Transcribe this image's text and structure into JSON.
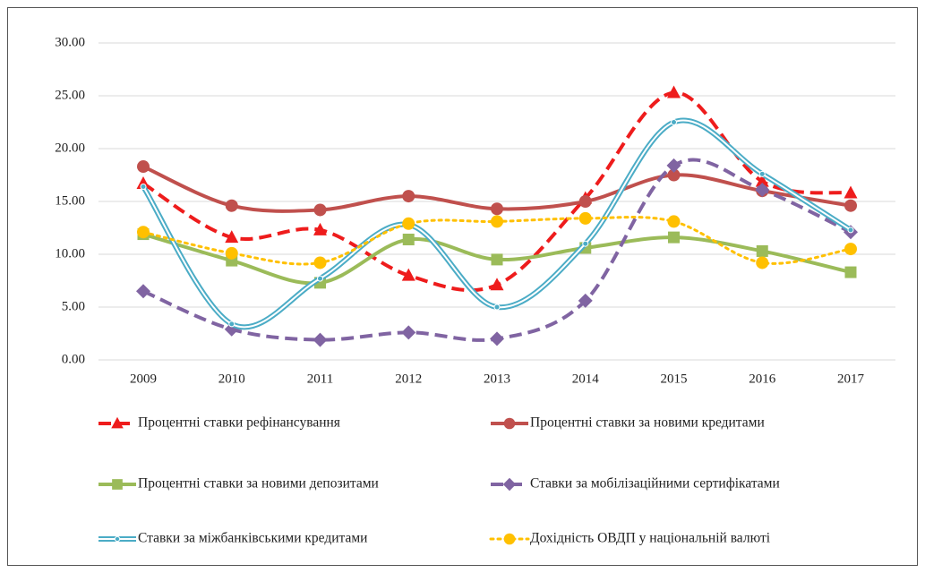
{
  "chart_data": {
    "type": "line",
    "categories": [
      "2009",
      "2010",
      "2011",
      "2012",
      "2013",
      "2014",
      "2015",
      "2016",
      "2017"
    ],
    "ylim": [
      0,
      30
    ],
    "yticks": [
      {
        "value": 0,
        "label": "0.00"
      },
      {
        "value": 5,
        "label": "5.00"
      },
      {
        "value": 10,
        "label": "10.00"
      },
      {
        "value": 15,
        "label": "15.00"
      },
      {
        "value": 20,
        "label": "20.00"
      },
      {
        "value": 25,
        "label": "25.00"
      },
      {
        "value": 30,
        "label": "30.00"
      }
    ],
    "grid": true,
    "legend": "bottom",
    "series": [
      {
        "name": "Процентні ставки рефінансування",
        "color": "#ee1c1c",
        "style": "dashed",
        "marker": "triangle",
        "values": [
          16.7,
          11.6,
          12.3,
          8.0,
          7.1,
          15.3,
          25.3,
          16.9,
          15.8
        ]
      },
      {
        "name": "Процентні ставки за новими кредитами",
        "color": "#c0504d",
        "style": "solid",
        "marker": "circle",
        "values": [
          18.3,
          14.6,
          14.2,
          15.5,
          14.3,
          15.0,
          17.5,
          16.0,
          14.6
        ]
      },
      {
        "name": "Процентні ставки за новими депозитами",
        "color": "#9bbb59",
        "style": "solid",
        "marker": "square",
        "values": [
          11.9,
          9.4,
          7.3,
          11.4,
          9.5,
          10.6,
          11.6,
          10.3,
          8.3
        ]
      },
      {
        "name": "Ставки за мобілізаційними сертифікатами",
        "color": "#8064a2",
        "style": "dashed",
        "marker": "diamond",
        "values": [
          6.5,
          2.9,
          1.9,
          2.6,
          2.0,
          5.6,
          18.4,
          16.1,
          12.1
        ]
      },
      {
        "name": "Ставки за міжбанківськими кредитами",
        "color": "#4bacc6",
        "style": "double",
        "marker": "dot",
        "values": [
          16.4,
          3.4,
          7.7,
          12.8,
          5.0,
          11.0,
          22.5,
          17.6,
          12.3
        ]
      },
      {
        "name": "Дохідність ОВДП у національній валюті",
        "color": "#ffc000",
        "style": "dotted",
        "marker": "circle",
        "values": [
          12.1,
          10.1,
          9.2,
          12.9,
          13.1,
          13.4,
          13.1,
          9.2,
          10.5
        ]
      }
    ]
  }
}
